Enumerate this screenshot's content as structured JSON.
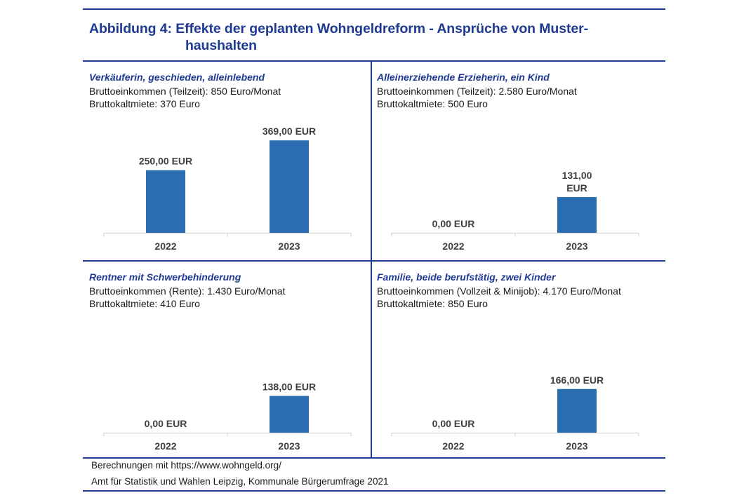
{
  "figure": {
    "title_line1": "Abbildung 4: Effekte der geplanten Wohngeldreform - Ansprüche von Muster-",
    "title_line2": "haushalten"
  },
  "colors": {
    "accent": "#1f3a93",
    "bar": "#2a6eb1",
    "axis": "#d9d9d9",
    "label": "#404040"
  },
  "chart_data": [
    {
      "type": "bar",
      "title": "Verkäuferin, geschieden, alleinlebend",
      "subtitle_lines": [
        "Bruttoeinkommen (Teilzeit): 850 Euro/Monat",
        "Bruttokaltmiete: 370 Euro"
      ],
      "categories": [
        "2022",
        "2023"
      ],
      "values": [
        250,
        369
      ],
      "data_labels": [
        [
          "250,00 EUR"
        ],
        [
          "369,00 EUR"
        ]
      ],
      "unit": "EUR",
      "xlabel": "",
      "ylabel": "",
      "ylim": [
        0,
        420
      ],
      "grid": false,
      "legend": "none"
    },
    {
      "type": "bar",
      "title": "Alleinerziehende Erzieherin, ein Kind",
      "subtitle_lines": [
        "Bruttoeinkommen (Teilzeit): 2.580 Euro/Monat",
        "Bruttokaltmiete: 500 Euro"
      ],
      "categories": [
        "2022",
        "2023"
      ],
      "values": [
        0,
        131
      ],
      "data_labels": [
        [
          "0,00 EUR"
        ],
        [
          "131,00",
          "EUR"
        ]
      ],
      "unit": "EUR",
      "xlabel": "",
      "ylabel": "",
      "ylim": [
        0,
        385
      ],
      "grid": false,
      "legend": "none"
    },
    {
      "type": "bar",
      "title": "Rentner mit Schwerbehinderung",
      "subtitle_lines": [
        "Bruttoeinkommen (Rente): 1.430 Euro/Monat",
        "Bruttokaltmiete: 410 Euro"
      ],
      "categories": [
        "2022",
        "2023"
      ],
      "values": [
        0,
        138
      ],
      "data_labels": [
        [
          "0,00 EUR"
        ],
        [
          "138,00 EUR"
        ]
      ],
      "unit": "EUR",
      "xlabel": "",
      "ylabel": "",
      "ylim": [
        0,
        395
      ],
      "grid": false,
      "legend": "none"
    },
    {
      "type": "bar",
      "title": "Familie, beide berufstätig, zwei Kinder",
      "subtitle_lines": [
        "Bruttoeinkommen (Vollzeit & Minijob): 4.170 Euro/Monat",
        "Bruttokaltmiete: 850 Euro"
      ],
      "categories": [
        "2022",
        "2023"
      ],
      "values": [
        0,
        166
      ],
      "data_labels": [
        [
          "0,00 EUR"
        ],
        [
          "166,00 EUR"
        ]
      ],
      "unit": "EUR",
      "xlabel": "",
      "ylabel": "",
      "ylim": [
        0,
        400
      ],
      "grid": false,
      "legend": "none"
    }
  ],
  "footer": {
    "line1": "Berechnungen mit https://www.wohngeld.org/",
    "line2": "Amt für Statistik und Wahlen Leipzig, Kommunale Bürgerumfrage 2021"
  }
}
